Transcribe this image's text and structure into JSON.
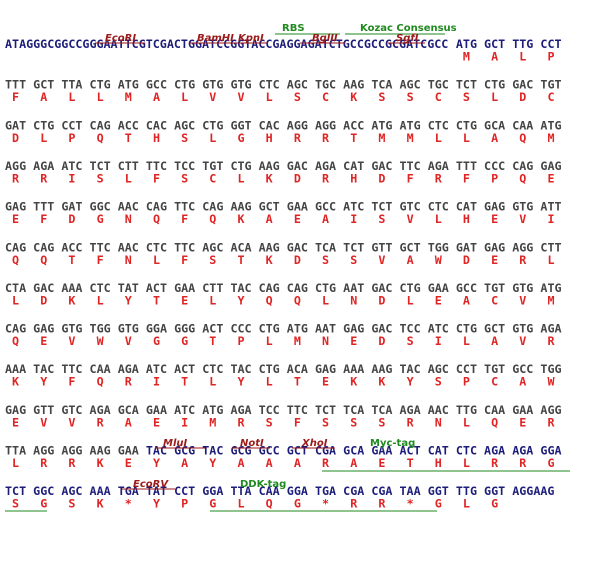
{
  "sequence": {
    "rows": [
      {
        "dna": [
          "ATAGGGCGGCCGGGAATTCGTCGACTGGATCCGGTACCGAGGAGATCTGCCGCCGCGATCGCC",
          "ATG",
          "GCT",
          "TTG",
          "CCT"
        ],
        "protein": [
          "M",
          "A",
          "L",
          "P"
        ]
      },
      {
        "dna": [
          "TTT",
          "GCT",
          "TTA",
          "CTG",
          "ATG",
          "GCC",
          "CTG",
          "GTG",
          "GTG",
          "CTC",
          "AGC",
          "TGC",
          "AAG",
          "TCA",
          "AGC",
          "TGC",
          "TCT",
          "CTG",
          "GAC",
          "TGT"
        ],
        "protein": [
          "F",
          "A",
          "L",
          "L",
          "M",
          "A",
          "L",
          "V",
          "V",
          "L",
          "S",
          "C",
          "K",
          "S",
          "S",
          "C",
          "S",
          "L",
          "D",
          "C"
        ]
      },
      {
        "dna": [
          "GAT",
          "CTG",
          "CCT",
          "CAG",
          "ACC",
          "CAC",
          "AGC",
          "CTG",
          "GGT",
          "CAC",
          "AGG",
          "AGG",
          "ACC",
          "ATG",
          "ATG",
          "CTC",
          "CTG",
          "GCA",
          "CAA",
          "ATG"
        ],
        "protein": [
          "D",
          "L",
          "P",
          "Q",
          "T",
          "H",
          "S",
          "L",
          "G",
          "H",
          "R",
          "R",
          "T",
          "M",
          "M",
          "L",
          "L",
          "A",
          "Q",
          "M"
        ]
      },
      {
        "dna": [
          "AGG",
          "AGA",
          "ATC",
          "TCT",
          "CTT",
          "TTC",
          "TCC",
          "TGT",
          "CTG",
          "AAG",
          "GAC",
          "AGA",
          "CAT",
          "GAC",
          "TTC",
          "AGA",
          "TTT",
          "CCC",
          "CAG",
          "GAG"
        ],
        "protein": [
          "R",
          "R",
          "I",
          "S",
          "L",
          "F",
          "S",
          "C",
          "L",
          "K",
          "D",
          "R",
          "H",
          "D",
          "F",
          "R",
          "F",
          "P",
          "Q",
          "E"
        ]
      },
      {
        "dna": [
          "GAG",
          "TTT",
          "GAT",
          "GGC",
          "AAC",
          "CAG",
          "TTC",
          "CAG",
          "AAG",
          "GCT",
          "GAA",
          "GCC",
          "ATC",
          "TCT",
          "GTC",
          "CTC",
          "CAT",
          "GAG",
          "GTG",
          "ATT"
        ],
        "protein": [
          "E",
          "F",
          "D",
          "G",
          "N",
          "Q",
          "F",
          "Q",
          "K",
          "A",
          "E",
          "A",
          "I",
          "S",
          "V",
          "L",
          "H",
          "E",
          "V",
          "I"
        ]
      },
      {
        "dna": [
          "CAG",
          "CAG",
          "ACC",
          "TTC",
          "AAC",
          "CTC",
          "TTC",
          "AGC",
          "ACA",
          "AAG",
          "GAC",
          "TCA",
          "TCT",
          "GTT",
          "GCT",
          "TGG",
          "GAT",
          "GAG",
          "AGG",
          "CTT"
        ],
        "protein": [
          "Q",
          "Q",
          "T",
          "F",
          "N",
          "L",
          "F",
          "S",
          "T",
          "K",
          "D",
          "S",
          "S",
          "V",
          "A",
          "W",
          "D",
          "E",
          "R",
          "L"
        ]
      },
      {
        "dna": [
          "CTA",
          "GAC",
          "AAA",
          "CTC",
          "TAT",
          "ACT",
          "GAA",
          "CTT",
          "TAC",
          "CAG",
          "CAG",
          "CTG",
          "AAT",
          "GAC",
          "CTG",
          "GAA",
          "GCC",
          "TGT",
          "GTG",
          "ATG"
        ],
        "protein": [
          "L",
          "D",
          "K",
          "L",
          "Y",
          "T",
          "E",
          "L",
          "Y",
          "Q",
          "Q",
          "L",
          "N",
          "D",
          "L",
          "E",
          "A",
          "C",
          "V",
          "M"
        ]
      },
      {
        "dna": [
          "CAG",
          "GAG",
          "GTG",
          "TGG",
          "GTG",
          "GGA",
          "GGG",
          "ACT",
          "CCC",
          "CTG",
          "ATG",
          "AAT",
          "GAG",
          "GAC",
          "TCC",
          "ATC",
          "CTG",
          "GCT",
          "GTG",
          "AGA"
        ],
        "protein": [
          "Q",
          "E",
          "V",
          "W",
          "V",
          "G",
          "G",
          "T",
          "P",
          "L",
          "M",
          "N",
          "E",
          "D",
          "S",
          "I",
          "L",
          "A",
          "V",
          "R"
        ]
      },
      {
        "dna": [
          "AAA",
          "TAC",
          "TTC",
          "CAA",
          "AGA",
          "ATC",
          "ACT",
          "CTC",
          "TAC",
          "CTG",
          "ACA",
          "GAG",
          "AAA",
          "AAG",
          "TAC",
          "AGC",
          "CCT",
          "TGT",
          "GCC",
          "TGG"
        ],
        "protein": [
          "K",
          "Y",
          "F",
          "Q",
          "R",
          "I",
          "T",
          "L",
          "Y",
          "L",
          "T",
          "E",
          "K",
          "K",
          "Y",
          "S",
          "P",
          "C",
          "A",
          "W"
        ]
      },
      {
        "dna": [
          "GAG",
          "GTT",
          "GTC",
          "AGA",
          "GCA",
          "GAA",
          "ATC",
          "ATG",
          "AGA",
          "TCC",
          "TTC",
          "TCT",
          "TCA",
          "TCA",
          "AGA",
          "AAC",
          "TTG",
          "CAA",
          "GAA",
          "AGG"
        ],
        "protein": [
          "E",
          "V",
          "V",
          "R",
          "A",
          "E",
          "I",
          "M",
          "R",
          "S",
          "F",
          "S",
          "S",
          "S",
          "R",
          "N",
          "L",
          "Q",
          "E",
          "R"
        ]
      },
      {
        "dna": [
          "TTA",
          "AGG",
          "AGG",
          "AAG",
          "GAA",
          "TAC",
          "GCG",
          "TAC",
          "GCG",
          "GCC",
          "GCT",
          "CGA",
          "GCA",
          "GAA",
          "ACT",
          "CAT",
          "CTC",
          "AGA",
          "AGA",
          "GGA"
        ],
        "protein": [
          "L",
          "R",
          "R",
          "K",
          "E",
          "Y",
          "A",
          "Y",
          "A",
          "A",
          "A",
          "R",
          "A",
          "E",
          "T",
          "H",
          "L",
          "R",
          "R",
          "G"
        ]
      },
      {
        "dna": [
          "TCT",
          "GGC",
          "AGC",
          "AAA",
          "TGA",
          "TAT",
          "CCT",
          "GGA",
          "TTA",
          "CAA",
          "GGA",
          "TGA",
          "CGA",
          "CGA",
          "TAA",
          "GGT",
          "TTG",
          "GGT",
          "AGGAAG"
        ],
        "protein": [
          "S",
          "G",
          "S",
          "K",
          "*",
          "Y",
          "P",
          "G",
          "L",
          "Q",
          "G",
          "*",
          "R",
          "R",
          "*",
          "G",
          "L",
          "G"
        ]
      }
    ]
  },
  "features": [
    {
      "label": "RBS",
      "color": "#1f8a1f"
    },
    {
      "label": "Kozac Consensus",
      "color": "#1f8a1f"
    },
    {
      "label": "EcoRI",
      "color": "#9c1a1a"
    },
    {
      "label": "BamHI",
      "color": "#9c1a1a"
    },
    {
      "label": "KpnI",
      "color": "#9c1a1a"
    },
    {
      "label": "BglII",
      "color": "#9c1a1a"
    },
    {
      "label": "SgfI",
      "color": "#9c1a1a"
    },
    {
      "label": "MluI",
      "color": "#9c1a1a"
    },
    {
      "label": "NotI",
      "color": "#9c1a1a"
    },
    {
      "label": "XhoI",
      "color": "#9c1a1a"
    },
    {
      "label": "Myc-tag",
      "color": "#1f8a1f"
    },
    {
      "label": "EcoRV",
      "color": "#9c1a1a"
    },
    {
      "label": "DDK-tag",
      "color": "#1f8a1f"
    }
  ]
}
